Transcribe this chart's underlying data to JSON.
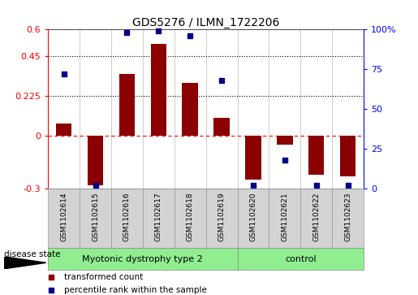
{
  "title": "GDS5276 / ILMN_1722206",
  "samples": [
    "GSM1102614",
    "GSM1102615",
    "GSM1102616",
    "GSM1102617",
    "GSM1102618",
    "GSM1102619",
    "GSM1102620",
    "GSM1102621",
    "GSM1102622",
    "GSM1102623"
  ],
  "transformed_count": [
    0.07,
    -0.28,
    0.35,
    0.52,
    0.3,
    0.1,
    -0.25,
    -0.05,
    -0.22,
    -0.23
  ],
  "percentile_rank": [
    72,
    2,
    98,
    99,
    96,
    68,
    2,
    18,
    2,
    2
  ],
  "group1_label": "Myotonic dystrophy type 2",
  "group1_count": 6,
  "group2_label": "control",
  "group2_count": 4,
  "group_color": "#90EE90",
  "sample_box_color": "#D3D3D3",
  "bar_color": "#8B0000",
  "dot_color": "#00008B",
  "ylim_left": [
    -0.3,
    0.6
  ],
  "ylim_right": [
    0,
    100
  ],
  "yticks_left": [
    -0.3,
    0,
    0.225,
    0.45,
    0.6
  ],
  "yticks_right": [
    0,
    25,
    50,
    75,
    100
  ],
  "dotted_lines": [
    0.45,
    0.225
  ],
  "bar_width": 0.5,
  "legend_red_label": "transformed count",
  "legend_blue_label": "percentile rank within the sample",
  "disease_state_label": "disease state"
}
